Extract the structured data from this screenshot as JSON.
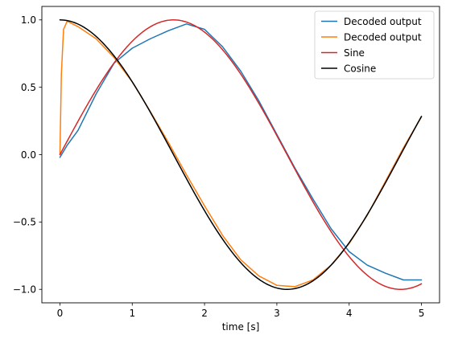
{
  "chart_data": {
    "type": "line",
    "title": "",
    "xlabel": "time [s]",
    "ylabel": "",
    "xlim": [
      -0.25,
      5.25
    ],
    "ylim": [
      -1.1,
      1.1
    ],
    "xticks": [
      0,
      1,
      2,
      3,
      4,
      5
    ],
    "xtick_labels": [
      "0",
      "1",
      "2",
      "3",
      "4",
      "5"
    ],
    "yticks": [
      -1.0,
      -0.5,
      0.0,
      0.5,
      1.0
    ],
    "ytick_labels": [
      "−1.0",
      "−0.5",
      "0.0",
      "0.5",
      "1.0"
    ],
    "grid": false,
    "legend_position": "top-right",
    "series": [
      {
        "name": "Decoded output",
        "color": "#1f77b4",
        "x": [
          0.0,
          0.1,
          0.25,
          0.5,
          0.75,
          1.0,
          1.25,
          1.5,
          1.75,
          2.0,
          2.25,
          2.5,
          2.75,
          3.0,
          3.25,
          3.5,
          3.75,
          4.0,
          4.25,
          4.5,
          4.75,
          5.0
        ],
        "y": [
          -0.02,
          0.07,
          0.18,
          0.45,
          0.68,
          0.79,
          0.86,
          0.92,
          0.97,
          0.93,
          0.8,
          0.62,
          0.4,
          0.15,
          -0.1,
          -0.33,
          -0.55,
          -0.72,
          -0.82,
          -0.88,
          -0.93,
          -0.93
        ]
      },
      {
        "name": "Decoded output",
        "color": "#ff7f0e",
        "x": [
          0.0,
          0.02,
          0.05,
          0.1,
          0.25,
          0.5,
          0.75,
          1.0,
          1.25,
          1.5,
          1.75,
          2.0,
          2.25,
          2.5,
          2.75,
          3.0,
          3.25,
          3.5,
          3.75,
          4.0,
          4.25,
          4.5,
          4.75,
          5.0
        ],
        "y": [
          0.0,
          0.6,
          0.93,
          0.99,
          0.95,
          0.86,
          0.72,
          0.54,
          0.32,
          0.09,
          -0.15,
          -0.38,
          -0.6,
          -0.78,
          -0.9,
          -0.97,
          -0.98,
          -0.93,
          -0.82,
          -0.66,
          -0.45,
          -0.2,
          0.05,
          0.28
        ]
      },
      {
        "name": "Sine",
        "color": "#d62728",
        "function": "sin",
        "x_range": [
          0,
          5
        ]
      },
      {
        "name": "Cosine",
        "color": "#000000",
        "function": "cos",
        "x_range": [
          0,
          5
        ]
      }
    ]
  }
}
